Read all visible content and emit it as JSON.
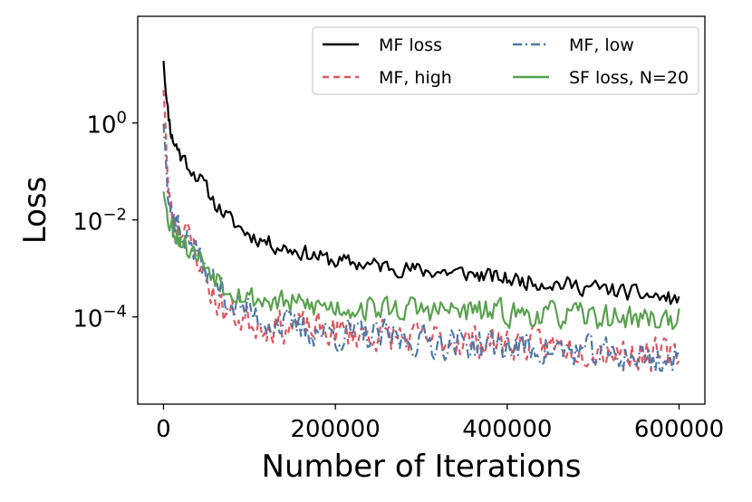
{
  "chart_data": {
    "type": "line",
    "title": "",
    "xlabel": "Number of Iterations",
    "ylabel": "Loss",
    "xscale": "linear",
    "yscale": "log",
    "xlim": [
      -30000,
      630000
    ],
    "ylim_log10": [
      -5.8,
      2.2
    ],
    "x_ticks": [
      0,
      200000,
      400000,
      600000
    ],
    "x_tick_labels": [
      "0",
      "200000",
      "400000",
      "600000"
    ],
    "y_ticks_exponent": [
      0,
      -2,
      -4
    ],
    "y_tick_labels": [
      {
        "base": "10",
        "exp": "0"
      },
      {
        "base": "10",
        "exp": "−2"
      },
      {
        "base": "10",
        "exp": "−4"
      }
    ],
    "grid": false,
    "legend": {
      "position": "top-right",
      "columns": 2
    },
    "series": [
      {
        "name": "MF loss",
        "color": "#000000",
        "dash": "solid",
        "noise": 0.22,
        "seed": 11,
        "points": [
          [
            0,
            20
          ],
          [
            2000,
            6
          ],
          [
            5000,
            1.8
          ],
          [
            10000,
            0.5
          ],
          [
            20000,
            0.22
          ],
          [
            30000,
            0.13
          ],
          [
            45000,
            0.06
          ],
          [
            60000,
            0.022
          ],
          [
            80000,
            0.009
          ],
          [
            100000,
            0.005
          ],
          [
            130000,
            0.003
          ],
          [
            160000,
            0.0022
          ],
          [
            200000,
            0.0014
          ],
          [
            260000,
            0.0011
          ],
          [
            300000,
            0.0009
          ],
          [
            350000,
            0.0008
          ],
          [
            400000,
            0.0006
          ],
          [
            450000,
            0.0005
          ],
          [
            500000,
            0.0004
          ],
          [
            550000,
            0.0003
          ],
          [
            600000,
            0.00022
          ]
        ]
      },
      {
        "name": "MF, high",
        "color": "#e0555e",
        "dash": "7,5",
        "noise": 0.45,
        "seed": 23,
        "points": [
          [
            0,
            5
          ],
          [
            2000,
            1.2
          ],
          [
            5000,
            0.05
          ],
          [
            10000,
            0.012
          ],
          [
            20000,
            0.006
          ],
          [
            30000,
            0.004
          ],
          [
            40000,
            0.0018
          ],
          [
            55000,
            0.00035
          ],
          [
            70000,
            0.00013
          ],
          [
            100000,
            8e-05
          ],
          [
            150000,
            6e-05
          ],
          [
            200000,
            5e-05
          ],
          [
            300000,
            3.5e-05
          ],
          [
            400000,
            3e-05
          ],
          [
            500000,
            2.2e-05
          ],
          [
            600000,
            1.5e-05
          ]
        ]
      },
      {
        "name": "MF, low",
        "color": "#4e79a7",
        "dash": "10,4,2,4",
        "noise": 0.45,
        "seed": 37,
        "points": [
          [
            0,
            1
          ],
          [
            2000,
            0.3
          ],
          [
            5000,
            0.04
          ],
          [
            10000,
            0.012
          ],
          [
            20000,
            0.006
          ],
          [
            30000,
            0.0035
          ],
          [
            45000,
            0.0012
          ],
          [
            60000,
            0.0005
          ],
          [
            80000,
            0.0002
          ],
          [
            110000,
            0.0001
          ],
          [
            150000,
            6e-05
          ],
          [
            200000,
            4.5e-05
          ],
          [
            300000,
            3.2e-05
          ],
          [
            400000,
            2.5e-05
          ],
          [
            500000,
            1.8e-05
          ],
          [
            600000,
            1.2e-05
          ]
        ]
      },
      {
        "name": "SF loss, N=20",
        "color": "#59a14f",
        "dash": "solid",
        "noise": 0.35,
        "seed": 53,
        "points": [
          [
            0,
            0.04
          ],
          [
            5000,
            0.012
          ],
          [
            10000,
            0.007
          ],
          [
            20000,
            0.004
          ],
          [
            30000,
            0.0025
          ],
          [
            50000,
            0.0012
          ],
          [
            70000,
            0.0005
          ],
          [
            100000,
            0.00025
          ],
          [
            150000,
            0.00018
          ],
          [
            200000,
            0.00016
          ],
          [
            300000,
            0.00014
          ],
          [
            400000,
            0.00012
          ],
          [
            500000,
            0.0001
          ],
          [
            600000,
            9e-05
          ]
        ]
      }
    ]
  }
}
